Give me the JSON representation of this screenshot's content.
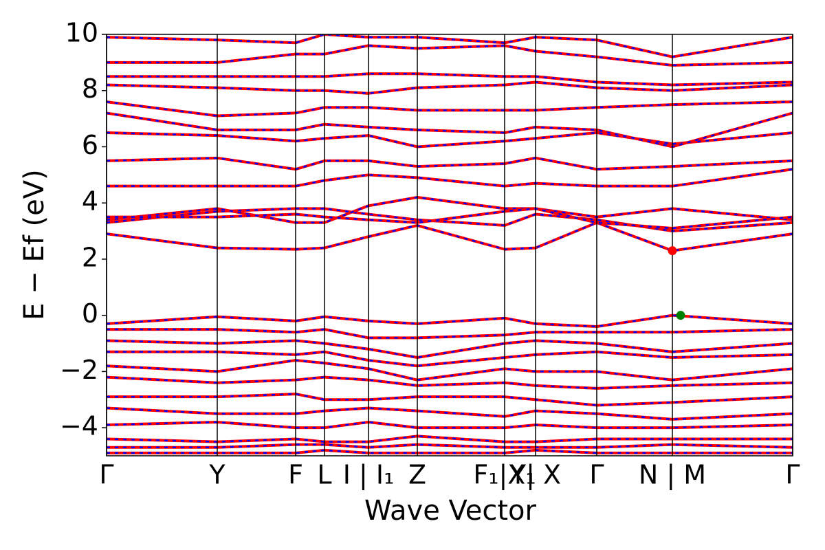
{
  "chart_data": {
    "type": "line",
    "xlabel": "Wave Vector",
    "ylabel": "E − Ef (eV)",
    "x": [
      0,
      1.61,
      2.75,
      3.17,
      3.81,
      4.52,
      5.79,
      6.24,
      7.13,
      8.23,
      9.98
    ],
    "xlim": [
      0,
      9.98
    ],
    "xticks": [
      {
        "value": 0,
        "label": "Γ"
      },
      {
        "value": 1.61,
        "label": "Y"
      },
      {
        "value": 2.75,
        "label": "F"
      },
      {
        "value": 3.17,
        "label": "L"
      },
      {
        "value": 3.81,
        "label": "I | I₁"
      },
      {
        "value": 4.52,
        "label": "Z"
      },
      {
        "value": 5.79,
        "label": "F₁|X₁"
      },
      {
        "value": 6.24,
        "label": "Y| X"
      },
      {
        "value": 7.13,
        "label": "Γ"
      },
      {
        "value": 8.23,
        "label": "N | M"
      },
      {
        "value": 9.98,
        "label": "Γ"
      }
    ],
    "ylim": [
      -5,
      10
    ],
    "yticks": [
      {
        "value": -4,
        "label": "−4"
      },
      {
        "value": -2,
        "label": "−2"
      },
      0,
      2,
      4,
      6,
      8,
      10
    ],
    "grid_x": true,
    "line_color": "#ff0000",
    "dash_color": "#0000ff",
    "series": [
      {
        "values": [
          2.9,
          2.4,
          2.35,
          2.4,
          2.8,
          3.2,
          2.35,
          2.4,
          3.3,
          2.3,
          2.9
        ]
      },
      {
        "values": [
          3.3,
          3.7,
          3.8,
          3.8,
          3.6,
          3.4,
          3.2,
          3.6,
          3.4,
          3.0,
          3.3
        ]
      },
      {
        "values": [
          3.4,
          3.8,
          3.3,
          3.3,
          3.9,
          4.2,
          3.8,
          3.8,
          3.5,
          3.8,
          3.4
        ]
      },
      {
        "values": [
          3.5,
          3.5,
          3.6,
          3.5,
          3.4,
          3.3,
          3.7,
          3.8,
          3.3,
          3.1,
          3.5
        ]
      },
      {
        "values": [
          4.6,
          4.6,
          4.6,
          4.8,
          5.0,
          4.9,
          4.6,
          4.7,
          4.6,
          4.6,
          5.2
        ]
      },
      {
        "values": [
          5.5,
          5.6,
          5.2,
          5.5,
          5.5,
          5.3,
          5.4,
          5.6,
          5.2,
          5.3,
          5.5
        ]
      },
      {
        "values": [
          6.5,
          6.4,
          6.2,
          6.3,
          6.4,
          6.0,
          6.2,
          6.3,
          6.5,
          6.1,
          6.5
        ]
      },
      {
        "values": [
          7.2,
          6.6,
          6.6,
          6.8,
          6.7,
          6.6,
          6.5,
          6.7,
          6.6,
          6.0,
          7.2
        ]
      },
      {
        "values": [
          7.6,
          7.1,
          7.2,
          7.4,
          7.4,
          7.3,
          7.3,
          7.3,
          7.4,
          7.5,
          7.6
        ]
      },
      {
        "values": [
          8.2,
          8.1,
          8.0,
          8.0,
          7.9,
          8.1,
          8.2,
          8.3,
          8.1,
          8.0,
          8.2
        ]
      },
      {
        "values": [
          8.5,
          8.5,
          8.5,
          8.5,
          8.6,
          8.6,
          8.5,
          8.5,
          8.3,
          8.2,
          8.3
        ]
      },
      {
        "values": [
          9.0,
          9.0,
          9.3,
          9.3,
          9.6,
          9.5,
          9.6,
          9.4,
          9.2,
          8.9,
          9.0
        ]
      },
      {
        "values": [
          9.9,
          9.8,
          9.7,
          10.0,
          9.9,
          9.9,
          9.7,
          9.9,
          9.8,
          9.2,
          9.9
        ]
      },
      {
        "values": [
          -0.3,
          -0.05,
          -0.2,
          -0.05,
          -0.2,
          -0.3,
          -0.1,
          -0.3,
          -0.4,
          0,
          -0.3
        ]
      },
      {
        "values": [
          -0.5,
          -0.5,
          -0.6,
          -0.5,
          -0.8,
          -0.8,
          -0.7,
          -0.6,
          -0.6,
          -0.6,
          -0.5
        ]
      },
      {
        "values": [
          -0.9,
          -1.0,
          -0.9,
          -1.0,
          -1.2,
          -1.5,
          -1.0,
          -0.9,
          -1.0,
          -1.3,
          -1.0
        ]
      },
      {
        "values": [
          -1.3,
          -1.3,
          -1.4,
          -1.3,
          -1.6,
          -1.8,
          -1.5,
          -1.4,
          -1.3,
          -1.5,
          -1.4
        ]
      },
      {
        "values": [
          -1.8,
          -2.0,
          -1.6,
          -1.7,
          -1.9,
          -2.3,
          -1.9,
          -2.0,
          -2.0,
          -2.3,
          -1.9
        ]
      },
      {
        "values": [
          -2.2,
          -2.4,
          -2.3,
          -2.2,
          -2.3,
          -2.5,
          -2.4,
          -2.5,
          -2.6,
          -2.5,
          -2.4
        ]
      },
      {
        "values": [
          -2.9,
          -2.9,
          -2.8,
          -3.0,
          -3.0,
          -2.9,
          -2.9,
          -3.0,
          -3.2,
          -3.1,
          -2.9
        ]
      },
      {
        "values": [
          -3.3,
          -3.5,
          -3.5,
          -3.4,
          -3.3,
          -3.4,
          -3.6,
          -3.4,
          -3.5,
          -3.7,
          -3.5
        ]
      },
      {
        "values": [
          -3.9,
          -3.8,
          -4.0,
          -4.0,
          -3.8,
          -4.0,
          -4.0,
          -3.9,
          -4.0,
          -4.0,
          -3.9
        ]
      },
      {
        "values": [
          -4.4,
          -4.5,
          -4.4,
          -4.5,
          -4.5,
          -4.3,
          -4.5,
          -4.5,
          -4.4,
          -4.4,
          -4.4
        ]
      },
      {
        "values": [
          -4.7,
          -4.7,
          -4.6,
          -4.6,
          -4.7,
          -4.6,
          -4.7,
          -4.7,
          -4.7,
          -4.6,
          -4.7
        ]
      },
      {
        "values": [
          -4.9,
          -4.9,
          -4.9,
          -4.8,
          -4.9,
          -4.9,
          -4.9,
          -4.8,
          -4.9,
          -4.9,
          -4.9
        ]
      }
    ],
    "markers": [
      {
        "x": 8.23,
        "y": 2.3,
        "color": "#ff0000"
      },
      {
        "x": 8.35,
        "y": 0.0,
        "color": "#008000"
      }
    ]
  }
}
